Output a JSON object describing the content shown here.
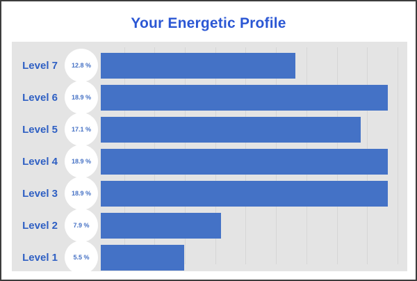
{
  "chart_data": {
    "type": "bar",
    "orientation": "horizontal",
    "title": "Your Energetic Profile",
    "categories": [
      "Level 7",
      "Level 6",
      "Level 5",
      "Level 4",
      "Level 3",
      "Level 2",
      "Level 1"
    ],
    "values": [
      12.8,
      18.9,
      17.1,
      18.9,
      18.9,
      7.9,
      5.5
    ],
    "value_labels": [
      "12.8 %",
      "18.9 %",
      "17.1 %",
      "18.9 %",
      "18.9 %",
      "7.9 %",
      "5.5 %"
    ],
    "unit": "%",
    "xlabel": "",
    "ylabel": "",
    "xlim": [
      0,
      20.6
    ],
    "gridline_step": 2,
    "grid": "vertical-only",
    "legend": false
  },
  "colors": {
    "bar": "#4472c6",
    "title_text": "#2b57d4",
    "label_text": "#2e5fc3",
    "badge_text": "#4470c4",
    "badge_background": "#ffffff",
    "panel_background": "#e4e4e4",
    "gridline": "#d6d6d6",
    "frame_border": "#3c3c3c",
    "page_background": "#ffffff"
  }
}
